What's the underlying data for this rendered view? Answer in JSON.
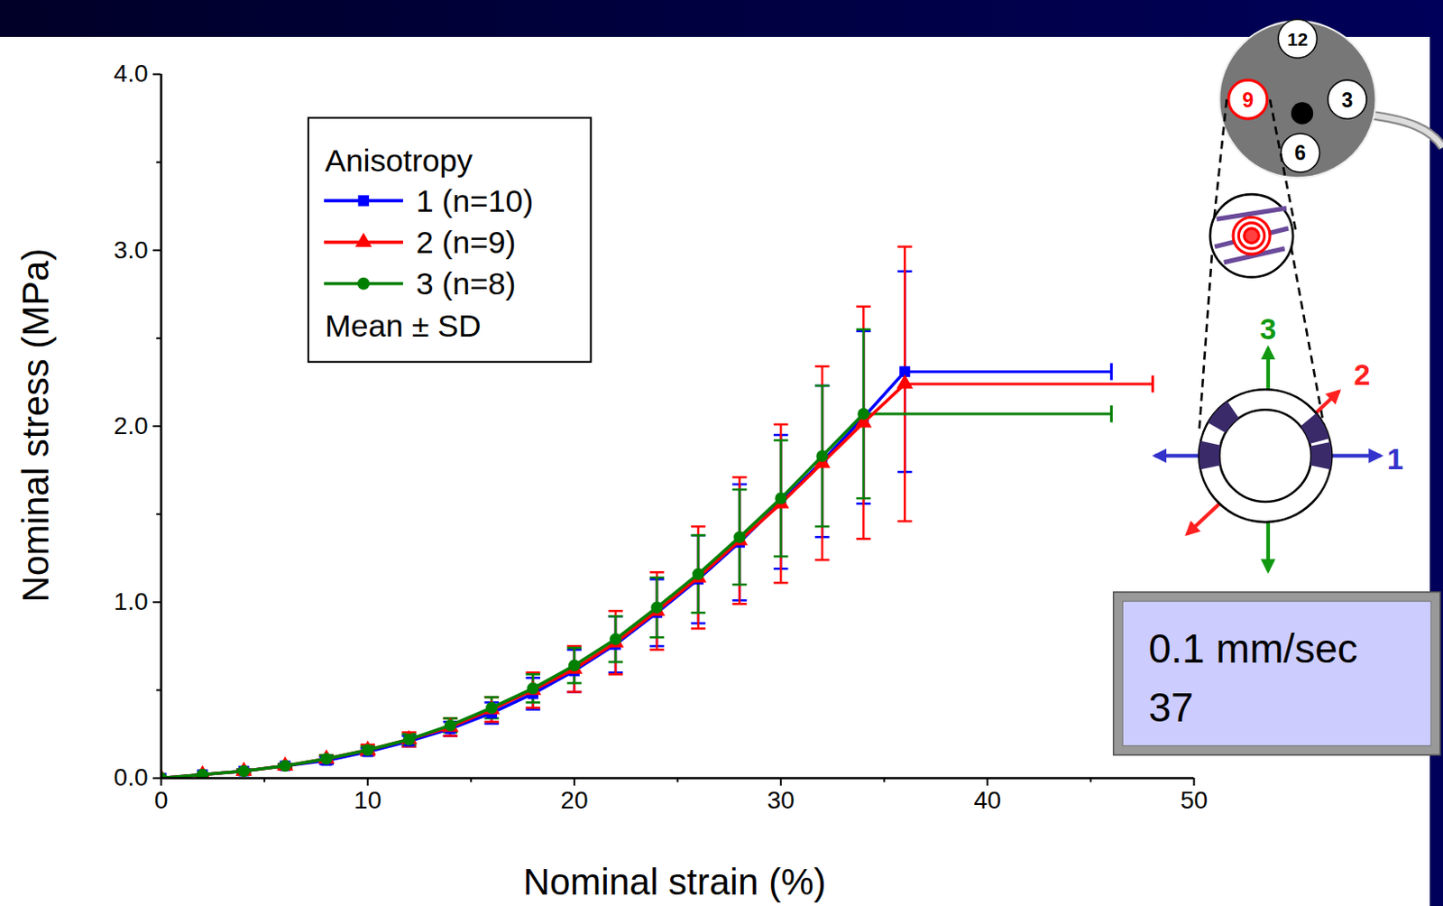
{
  "chart_data": {
    "type": "line",
    "x_label": "Nominal strain (%)",
    "y_label": "Nominal stress (MPa)",
    "xlim": [
      0,
      50
    ],
    "xticks": [
      0,
      10,
      20,
      30,
      40,
      50
    ],
    "ylim": [
      0,
      4
    ],
    "yticks": [
      {
        "value": 0,
        "label": "0.0"
      },
      {
        "value": 1,
        "label": "1.0"
      },
      {
        "value": 2,
        "label": "2.0"
      },
      {
        "value": 3,
        "label": "3.0"
      },
      {
        "value": 4,
        "label": "4.0"
      }
    ],
    "legend": "upper left",
    "legend_title": "Anisotropy",
    "legend_note": "Mean ± SD",
    "series": [
      {
        "name": "1 (n=10)",
        "color": "#0000ff",
        "marker": "square",
        "x": [
          0,
          2,
          4,
          6,
          8,
          10,
          12,
          14,
          16,
          18,
          20,
          22,
          24,
          26,
          28,
          30,
          32,
          34,
          36
        ],
        "values": [
          0,
          0.02,
          0.04,
          0.07,
          0.1,
          0.15,
          0.21,
          0.28,
          0.37,
          0.48,
          0.61,
          0.76,
          0.94,
          1.13,
          1.34,
          1.57,
          1.8,
          2.05,
          2.31
        ],
        "sd": [
          0,
          0,
          0.01,
          0.01,
          0.02,
          0.02,
          0.03,
          0.04,
          0.06,
          0.09,
          0.12,
          0.16,
          0.19,
          0.25,
          0.33,
          0.38,
          0.43,
          0.49,
          0.57
        ],
        "x_sd": [
          null,
          null,
          null,
          null,
          null,
          null,
          null,
          null,
          null,
          null,
          null,
          null,
          null,
          null,
          null,
          null,
          null,
          null,
          10
        ]
      },
      {
        "name": "2 (n=9)",
        "color": "#ff0000",
        "marker": "triangle",
        "x": [
          0,
          2,
          4,
          6,
          8,
          10,
          12,
          14,
          16,
          18,
          20,
          22,
          24,
          26,
          28,
          30,
          32,
          34,
          36
        ],
        "values": [
          0,
          0.02,
          0.04,
          0.07,
          0.11,
          0.16,
          0.22,
          0.29,
          0.39,
          0.5,
          0.62,
          0.77,
          0.95,
          1.14,
          1.35,
          1.56,
          1.79,
          2.02,
          2.24
        ],
        "sd": [
          0,
          0,
          0.01,
          0.01,
          0.02,
          0.03,
          0.04,
          0.05,
          0.07,
          0.1,
          0.13,
          0.18,
          0.22,
          0.29,
          0.36,
          0.45,
          0.55,
          0.66,
          0.78
        ],
        "x_sd": [
          null,
          null,
          null,
          null,
          null,
          null,
          null,
          null,
          null,
          null,
          null,
          null,
          null,
          null,
          null,
          null,
          null,
          null,
          12
        ]
      },
      {
        "name": "3 (n=8)",
        "color": "#008000",
        "marker": "circle",
        "x": [
          0,
          2,
          4,
          6,
          8,
          10,
          12,
          14,
          16,
          18,
          20,
          22,
          24,
          26,
          28,
          30,
          32,
          34
        ],
        "values": [
          0,
          0.02,
          0.04,
          0.07,
          0.11,
          0.16,
          0.22,
          0.3,
          0.4,
          0.51,
          0.64,
          0.79,
          0.97,
          1.16,
          1.37,
          1.59,
          1.83,
          2.07
        ],
        "sd": [
          0,
          0,
          0.01,
          0.01,
          0.02,
          0.02,
          0.03,
          0.04,
          0.06,
          0.08,
          0.1,
          0.13,
          0.17,
          0.22,
          0.27,
          0.33,
          0.4,
          0.48
        ],
        "x_sd": [
          null,
          null,
          null,
          null,
          null,
          null,
          null,
          null,
          null,
          null,
          null,
          null,
          null,
          null,
          null,
          null,
          null,
          12
        ]
      }
    ],
    "annotations": {
      "clock_labels": [
        "12",
        "9",
        "3",
        "6"
      ],
      "highlight": "9",
      "directions": [
        {
          "label": "1",
          "color": "#3333cc"
        },
        {
          "label": "2",
          "color": "#ff2020"
        },
        {
          "label": "3",
          "color": "#119911"
        }
      ],
      "condition": [
        "0.1 mm/sec",
        "37"
      ]
    }
  }
}
